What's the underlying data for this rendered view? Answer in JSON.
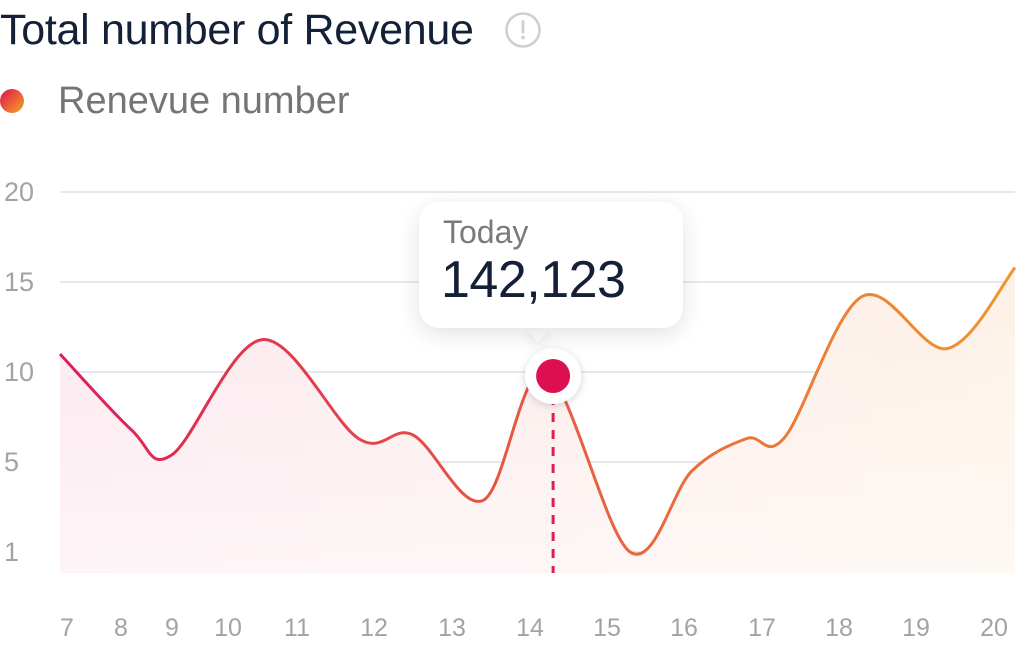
{
  "header": {
    "title": "Total number of Revenue",
    "info_icon": "info-exclamation-icon"
  },
  "legend": {
    "label": "Renevue number",
    "gradient": [
      "#e0114f",
      "#f5a623"
    ]
  },
  "tooltip": {
    "label": "Today",
    "value": "142,123",
    "marker_x": 14.3,
    "marker_y": 10
  },
  "chart_data": {
    "type": "area",
    "title": "Total number of Revenue",
    "xlabel": "",
    "ylabel": "",
    "y_ticks": [
      1,
      5,
      10,
      15,
      20
    ],
    "x_ticks": [
      7,
      8,
      9,
      10,
      11,
      12,
      13,
      14,
      15,
      16,
      17,
      18,
      19,
      20
    ],
    "xlim": [
      7,
      20.3
    ],
    "ylim": [
      0,
      20
    ],
    "grid": true,
    "legend_position": "top-left",
    "series": [
      {
        "name": "Renevue number",
        "colors": [
          "#dc1f55",
          "#f0962e"
        ],
        "points": [
          [
            7,
            11
          ],
          [
            8.2,
            6.8
          ],
          [
            9.0,
            5.4
          ],
          [
            10.5,
            11.8
          ],
          [
            11.8,
            6.3
          ],
          [
            12.5,
            6.5
          ],
          [
            13.4,
            3.3
          ],
          [
            14.2,
            10.0
          ],
          [
            15.3,
            1.0
          ],
          [
            16.1,
            4.6
          ],
          [
            16.8,
            6.3
          ],
          [
            17.3,
            6.4
          ],
          [
            18.3,
            14.2
          ],
          [
            19.4,
            11.3
          ],
          [
            20.3,
            15.8
          ]
        ]
      }
    ]
  }
}
